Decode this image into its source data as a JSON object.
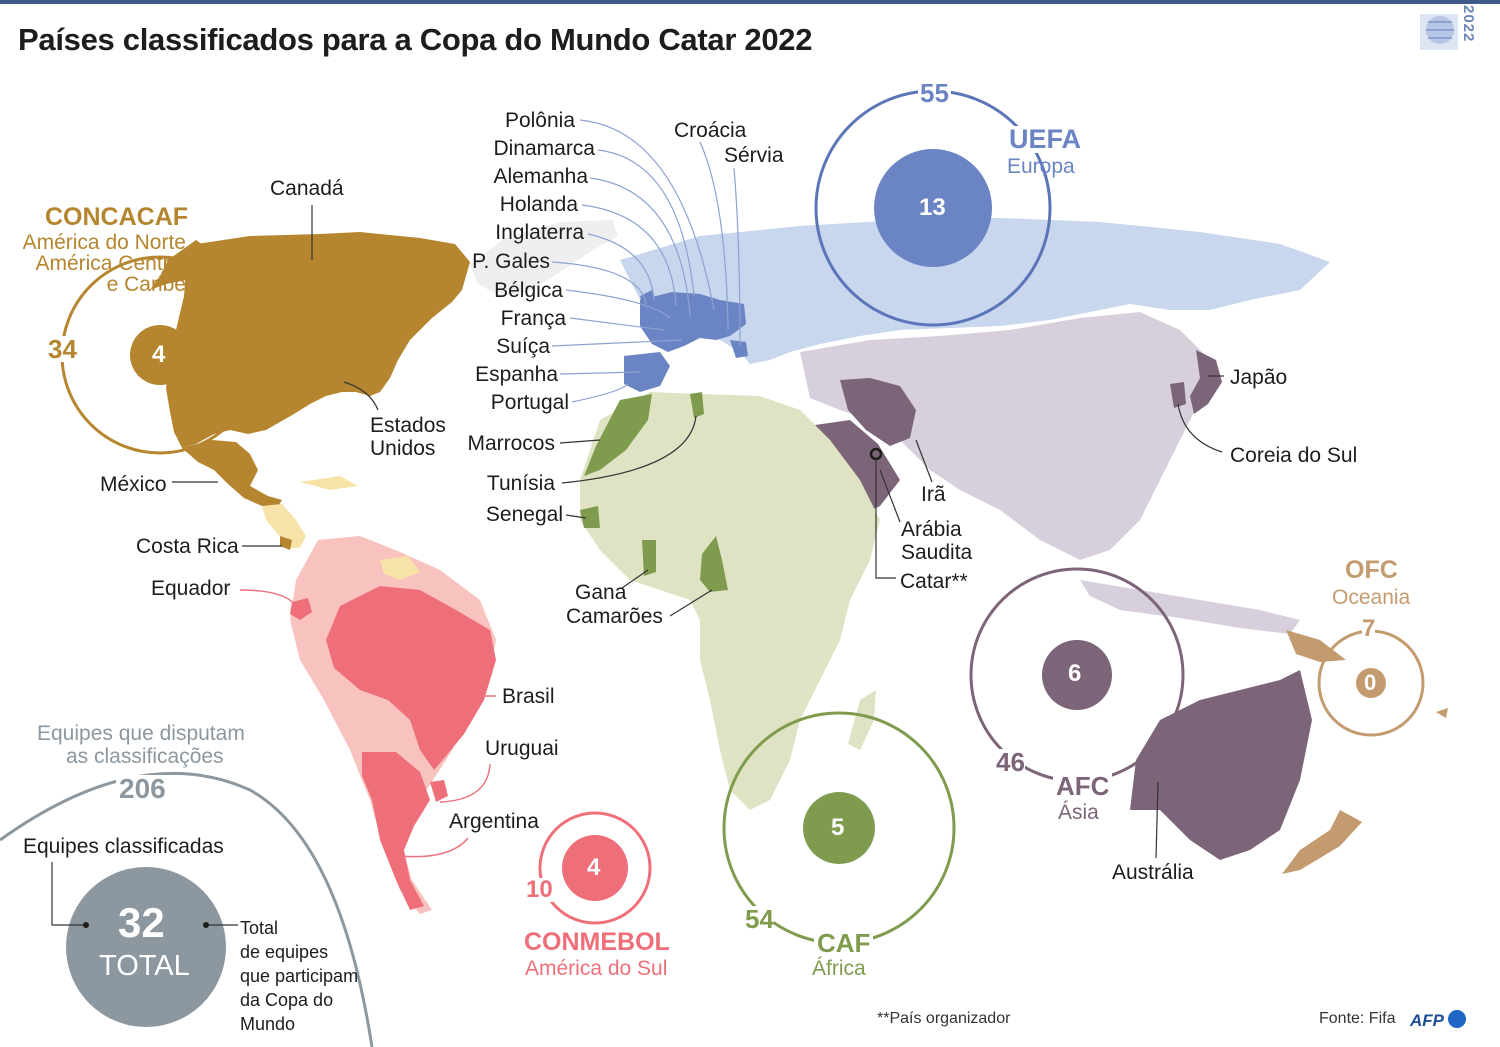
{
  "title": "Países classificados para a Copa do Mundo Catar 2022",
  "logo_year": "2022",
  "colors": {
    "concacaf": "#b5862f",
    "concacaf_light": "#f7e3a8",
    "conmebol": "#ee6f7a",
    "conmebol_light": "#f8c2bf",
    "uefa": "#6b84c3",
    "uefa_light": "#c8d6ee",
    "caf": "#7f9c4e",
    "caf_light": "#dfe3c4",
    "afc": "#7d6579",
    "afc_light": "#d7d0dc",
    "ofc": "#c39b6f",
    "total": "#8c979f"
  },
  "confederations": {
    "concacaf": {
      "name": "CONCACAF",
      "region_line1": "América do Norte",
      "region_line2": "América Central",
      "region_line3": "e Caribe",
      "teams": "34",
      "qualified": "4"
    },
    "conmebol": {
      "name": "CONMEBOL",
      "region": "América do Sul",
      "teams": "10",
      "qualified": "4"
    },
    "uefa": {
      "name": "UEFA",
      "region": "Europa",
      "teams": "55",
      "qualified": "13"
    },
    "caf": {
      "name": "CAF",
      "region": "África",
      "teams": "54",
      "qualified": "5"
    },
    "afc": {
      "name": "AFC",
      "region": "Ásia",
      "teams": "46",
      "qualified": "6"
    },
    "ofc": {
      "name": "OFC",
      "region": "Oceania",
      "teams": "7",
      "qualified": "0"
    }
  },
  "countries": {
    "canada": "Canadá",
    "usa_line1": "Estados",
    "usa_line2": "Unidos",
    "mexico": "México",
    "costa_rica": "Costa Rica",
    "ecuador": "Equador",
    "brazil": "Brasil",
    "uruguay": "Uruguai",
    "argentina": "Argentina",
    "poland": "Polônia",
    "denmark": "Dinamarca",
    "germany": "Alemanha",
    "netherlands": "Holanda",
    "england": "Inglaterra",
    "wales": "P. Gales",
    "belgium": "Bélgica",
    "france": "França",
    "switzerland": "Suíça",
    "spain": "Espanha",
    "portugal": "Portugal",
    "croatia": "Croácia",
    "serbia": "Sérvia",
    "morocco": "Marrocos",
    "tunisia": "Tunísia",
    "senegal": "Senegal",
    "ghana": "Gana",
    "cameroon": "Camarões",
    "iran": "Irã",
    "saudi_line1": "Arábia",
    "saudi_line2": "Saudita",
    "qatar": "Catar**",
    "japan": "Japão",
    "korea": "Coreia do Sul",
    "australia": "Austrália"
  },
  "legend": {
    "competing_line1": "Equipes que disputam",
    "competing_line2": "as classificações",
    "competing_total": "206",
    "qualified_label": "Equipes classificadas",
    "qualified_total": "32",
    "total_word": "TOTAL",
    "note_line1": "Total",
    "note_line2": "de equipes",
    "note_line3": "que participam",
    "note_line4": "da Copa do",
    "note_line5": "Mundo"
  },
  "footnote": "**País organizador",
  "source": "Fonte: Fifa",
  "credit": "AFP"
}
